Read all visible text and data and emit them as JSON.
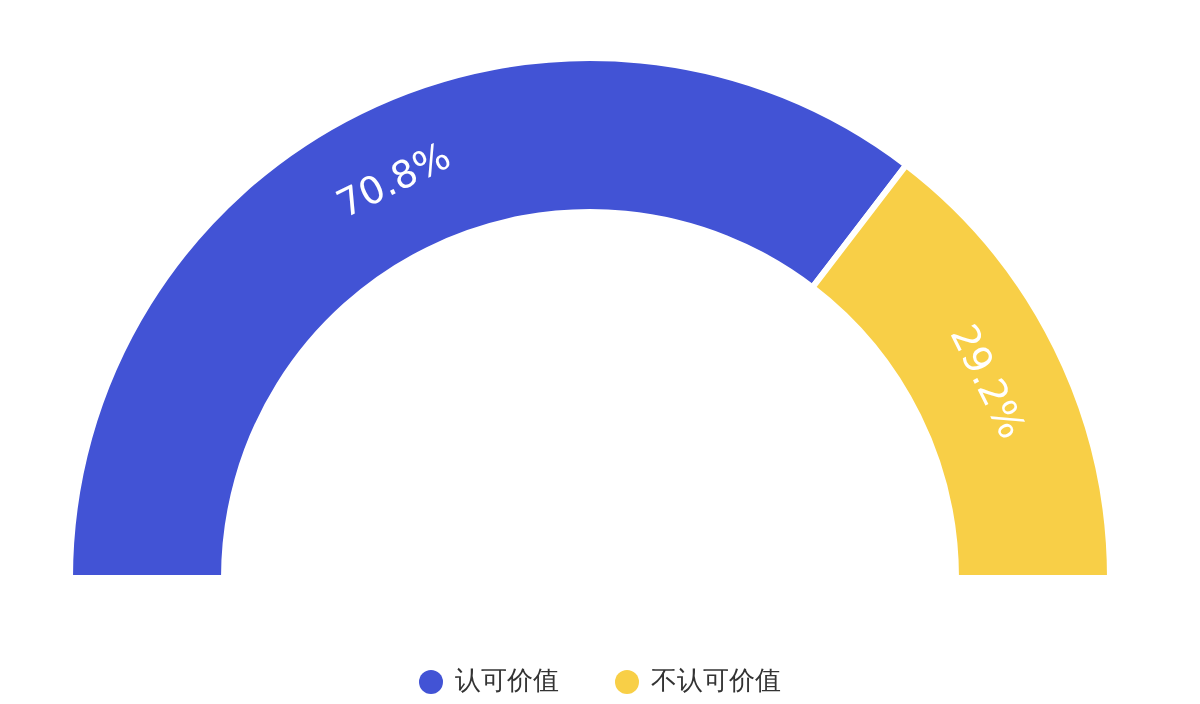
{
  "chart_data": {
    "type": "donut",
    "categories": [
      "认可价值",
      "不认可价值"
    ],
    "values": [
      70.8,
      29.2
    ],
    "colors": [
      "#4253d5",
      "#f8cf47"
    ],
    "value_labels": [
      "70.8%",
      "29.2%"
    ],
    "legend": "bottom"
  }
}
